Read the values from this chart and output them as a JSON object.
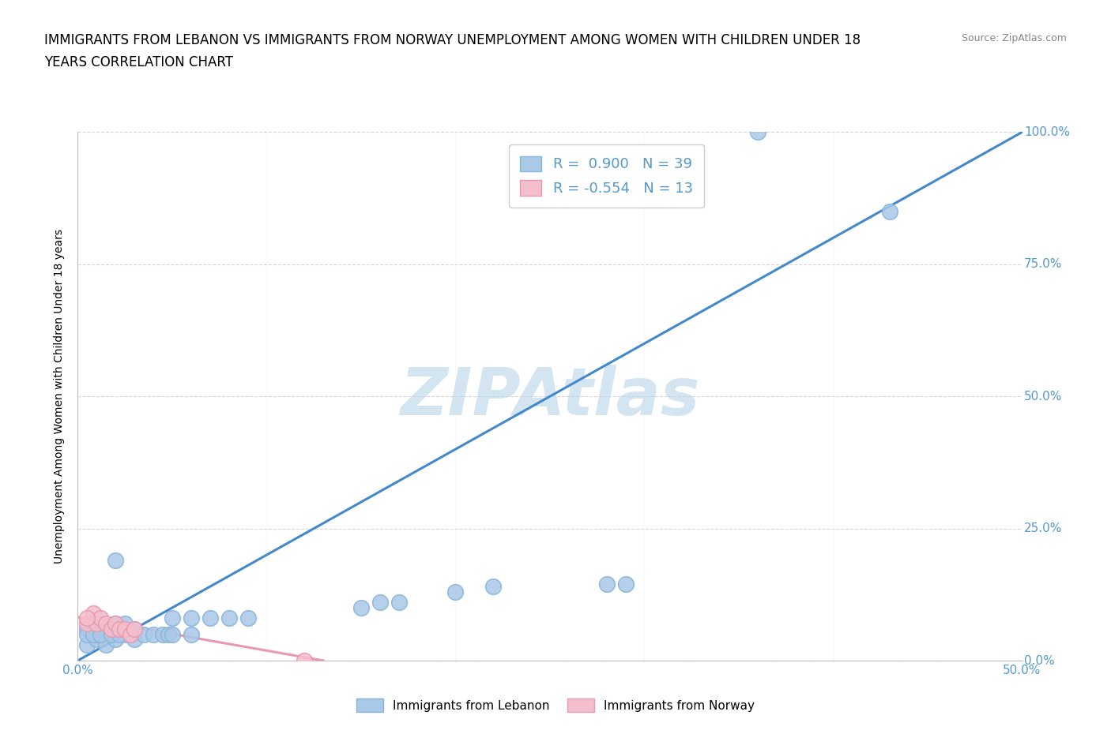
{
  "title_line1": "IMMIGRANTS FROM LEBANON VS IMMIGRANTS FROM NORWAY UNEMPLOYMENT AMONG WOMEN WITH CHILDREN UNDER 18",
  "title_line2": "YEARS CORRELATION CHART",
  "source_text": "Source: ZipAtlas.com",
  "ylabel": "Unemployment Among Women with Children Under 18 years",
  "xlim": [
    0.0,
    0.5
  ],
  "ylim": [
    0.0,
    1.0
  ],
  "xticks": [
    0.0,
    0.1,
    0.2,
    0.3,
    0.4,
    0.5
  ],
  "yticks": [
    0.0,
    0.25,
    0.5,
    0.75,
    1.0
  ],
  "xtick_labels": [
    "0.0%",
    "",
    "",
    "",
    "",
    "50.0%"
  ],
  "ytick_labels_right": [
    "0.0%",
    "25.0%",
    "50.0%",
    "75.0%",
    "100.0%"
  ],
  "background_color": "#ffffff",
  "grid_color": "#cccccc",
  "watermark_text": "ZIPAtlas",
  "watermark_color": "#b8d4ea",
  "lebanon_color": "#aac8e8",
  "lebanon_edge_color": "#88b4d8",
  "norway_color": "#f4bfcc",
  "norway_edge_color": "#e898b0",
  "legend1_label": "R =  0.900   N = 39",
  "legend2_label": "R = -0.554   N = 13",
  "legend_label1": "Immigrants from Lebanon",
  "legend_label2": "Immigrants from Norway",
  "blue_line_color": "#4488cc",
  "pink_line_color": "#e898b0",
  "title_fontsize": 12,
  "axis_label_fontsize": 10,
  "tick_fontsize": 11,
  "tick_color": "#5599cc",
  "lebanon_scatter_x": [
    0.02,
    0.005,
    0.01,
    0.015,
    0.02,
    0.025,
    0.03,
    0.005,
    0.01,
    0.015,
    0.02,
    0.03,
    0.01,
    0.025,
    0.2,
    0.22,
    0.15,
    0.16,
    0.17,
    0.28,
    0.29,
    0.05,
    0.06,
    0.07,
    0.08,
    0.09,
    0.43,
    0.005,
    0.008,
    0.012,
    0.018,
    0.022,
    0.035,
    0.04,
    0.045,
    0.048,
    0.05,
    0.06,
    0.36
  ],
  "lebanon_scatter_y": [
    0.19,
    0.03,
    0.04,
    0.03,
    0.04,
    0.05,
    0.04,
    0.06,
    0.05,
    0.06,
    0.07,
    0.06,
    0.07,
    0.07,
    0.13,
    0.14,
    0.1,
    0.11,
    0.11,
    0.145,
    0.145,
    0.08,
    0.08,
    0.08,
    0.08,
    0.08,
    0.85,
    0.05,
    0.05,
    0.05,
    0.05,
    0.05,
    0.05,
    0.05,
    0.05,
    0.05,
    0.05,
    0.05,
    1.0
  ],
  "norway_scatter_x": [
    0.005,
    0.008,
    0.01,
    0.012,
    0.015,
    0.018,
    0.02,
    0.022,
    0.025,
    0.028,
    0.03,
    0.005,
    0.12
  ],
  "norway_scatter_y": [
    0.07,
    0.09,
    0.07,
    0.08,
    0.07,
    0.06,
    0.07,
    0.06,
    0.06,
    0.05,
    0.06,
    0.08,
    0.0
  ],
  "blue_line_x": [
    0.0,
    0.5
  ],
  "blue_line_y": [
    0.0,
    1.0
  ],
  "pink_line_x": [
    0.0,
    0.13
  ],
  "pink_line_y": [
    0.082,
    0.0
  ]
}
